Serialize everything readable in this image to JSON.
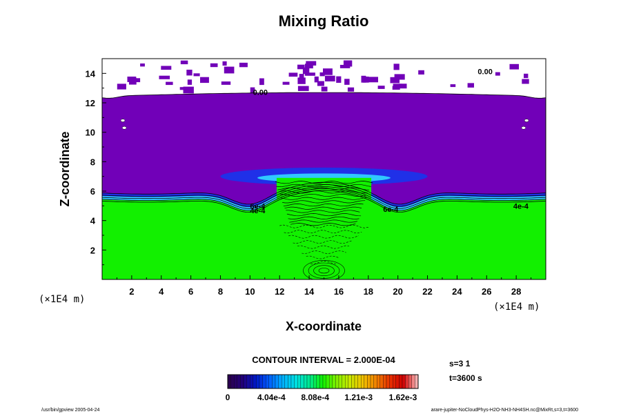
{
  "chart_data": {
    "type": "heatmap",
    "title": "Mixing Ratio",
    "xlabel": "X-coordinate",
    "ylabel": "Z-coordinate",
    "x_unit": "(×1E4 m)",
    "y_unit": "(×1E4 m)",
    "xlim": [
      0,
      30
    ],
    "ylim": [
      0,
      15
    ],
    "x_ticks": [
      "2",
      "4",
      "6",
      "8",
      "10",
      "12",
      "14",
      "16",
      "18",
      "20",
      "22",
      "24",
      "26",
      "28"
    ],
    "y_ticks": [
      "2",
      "4",
      "6",
      "8",
      "10",
      "12",
      "14"
    ],
    "contour_labels": [
      "0.00",
      "0.00",
      "4e-4",
      "6e-4",
      "6e-4",
      "4e-4"
    ],
    "contour_interval_label": "CONTOUR INTERVAL = 2.000E-04",
    "colorbar": {
      "ticks": [
        "0",
        "4.04e-4",
        "8.08e-4",
        "1.21e-3",
        "1.62e-3"
      ],
      "colors": [
        "#2a0050",
        "#22007a",
        "#0018c8",
        "#0060ff",
        "#00b0ff",
        "#00e0e0",
        "#00e890",
        "#10f000",
        "#80f000",
        "#c8e800",
        "#f0c000",
        "#f08000",
        "#e83000",
        "#d00000",
        "#f8b0b0"
      ]
    },
    "regions": [
      {
        "name": "above",
        "color": "#ffffff"
      },
      {
        "name": "upper",
        "color": "#7100b8"
      },
      {
        "name": "lower",
        "color": "#12f000"
      },
      {
        "name": "blue-band",
        "color": "#2030e8"
      },
      {
        "name": "cyan-band",
        "color": "#30c8ff"
      }
    ]
  },
  "info": {
    "s_label": "s=3 1",
    "t_label": "t=3600 s"
  },
  "footer": {
    "left": "/usr/bin/gpview 2005-04-24",
    "right": "arare-jupiter-NoCloudPhys-H2O-NH3-NH4SH.nc@MixRt,s=3,t=3600"
  }
}
